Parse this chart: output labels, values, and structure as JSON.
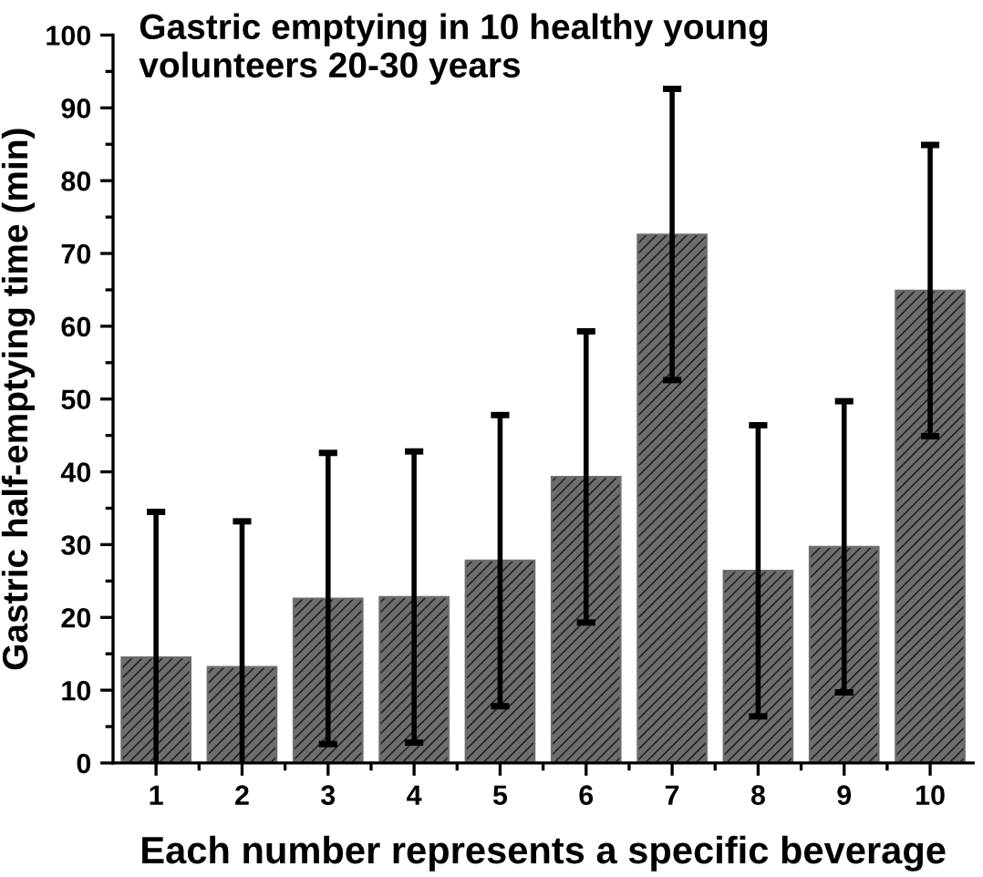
{
  "chart_data": {
    "type": "bar",
    "title": "Gastric emptying in 10 healthy young\nvolunteers 20-30 years",
    "xlabel": "Each number represents a specific beverage",
    "ylabel": "Gastric half-emptying time (min)",
    "categories": [
      "1",
      "2",
      "3",
      "4",
      "5",
      "6",
      "7",
      "8",
      "9",
      "10"
    ],
    "values": [
      14.5,
      13.2,
      22.6,
      22.8,
      27.8,
      39.3,
      72.6,
      26.4,
      29.7,
      64.9
    ],
    "errors": [
      [
        0,
        34.5
      ],
      [
        0,
        33.2
      ],
      20,
      20,
      20,
      20,
      20,
      20,
      20,
      20
    ],
    "color": "#6e6e6e",
    "ylim": [
      0,
      100
    ],
    "yticks": [
      0,
      10,
      20,
      30,
      40,
      50,
      60,
      70,
      80,
      90,
      100
    ],
    "grid": false
  }
}
